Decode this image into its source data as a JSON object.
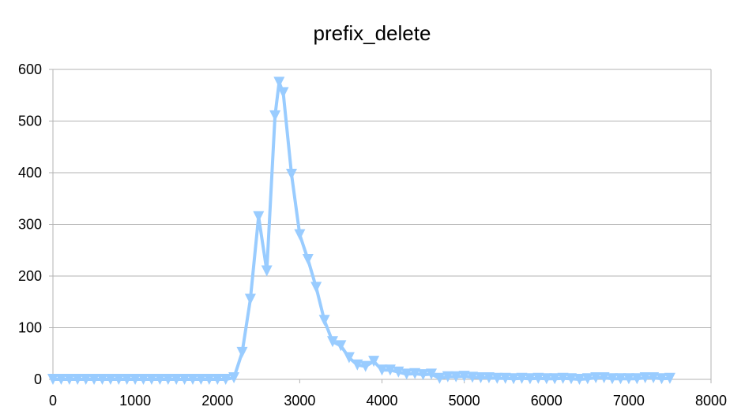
{
  "chart_data": {
    "type": "line",
    "title": "prefix_delete",
    "xlabel": "",
    "ylabel": "",
    "xlim": [
      0,
      8000
    ],
    "ylim": [
      0,
      600
    ],
    "xticks": [
      0,
      1000,
      2000,
      3000,
      4000,
      5000,
      6000,
      7000,
      8000
    ],
    "yticks": [
      0,
      100,
      200,
      300,
      400,
      500,
      600
    ],
    "xtick_labels": [
      "0",
      "1000",
      "2000",
      "3000",
      "4000",
      "5000",
      "6000",
      "7000",
      "8000"
    ],
    "ytick_labels": [
      "0",
      "100",
      "200",
      "300",
      "400",
      "500",
      "600"
    ],
    "grid": true,
    "legend": "none",
    "line_color": "#99ccff",
    "marker": "triangle-down",
    "series": [
      {
        "x": [
          0,
          100,
          200,
          300,
          400,
          500,
          600,
          700,
          800,
          900,
          1000,
          1100,
          1200,
          1300,
          1400,
          1500,
          1600,
          1700,
          1800,
          1900,
          2000,
          2100,
          2200,
          2300,
          2400,
          2500,
          2600,
          2700,
          2750,
          2800,
          2900,
          3000,
          3100,
          3200,
          3300,
          3400,
          3500,
          3600,
          3700,
          3800,
          3900,
          4000,
          4100,
          4200,
          4300,
          4400,
          4500,
          4600,
          4700,
          4800,
          4900,
          5000,
          5100,
          5200,
          5300,
          5400,
          5500,
          5600,
          5700,
          5800,
          5900,
          6000,
          6100,
          6200,
          6300,
          6400,
          6500,
          6600,
          6700,
          6800,
          6900,
          7000,
          7100,
          7200,
          7300,
          7400,
          7500
        ],
        "y": [
          0,
          0,
          0,
          0,
          0,
          0,
          0,
          0,
          0,
          0,
          0,
          0,
          0,
          0,
          0,
          0,
          0,
          0,
          0,
          0,
          0,
          0,
          3,
          52,
          155,
          315,
          210,
          510,
          575,
          555,
          397,
          280,
          232,
          178,
          114,
          73,
          65,
          42,
          28,
          25,
          35,
          18,
          18,
          14,
          10,
          11,
          9,
          10,
          2,
          5,
          5,
          6,
          4,
          3,
          3,
          2,
          2,
          1,
          2,
          1,
          2,
          1,
          1,
          2,
          1,
          0,
          1,
          3,
          3,
          1,
          1,
          1,
          1,
          3,
          3,
          1,
          2
        ]
      }
    ]
  }
}
